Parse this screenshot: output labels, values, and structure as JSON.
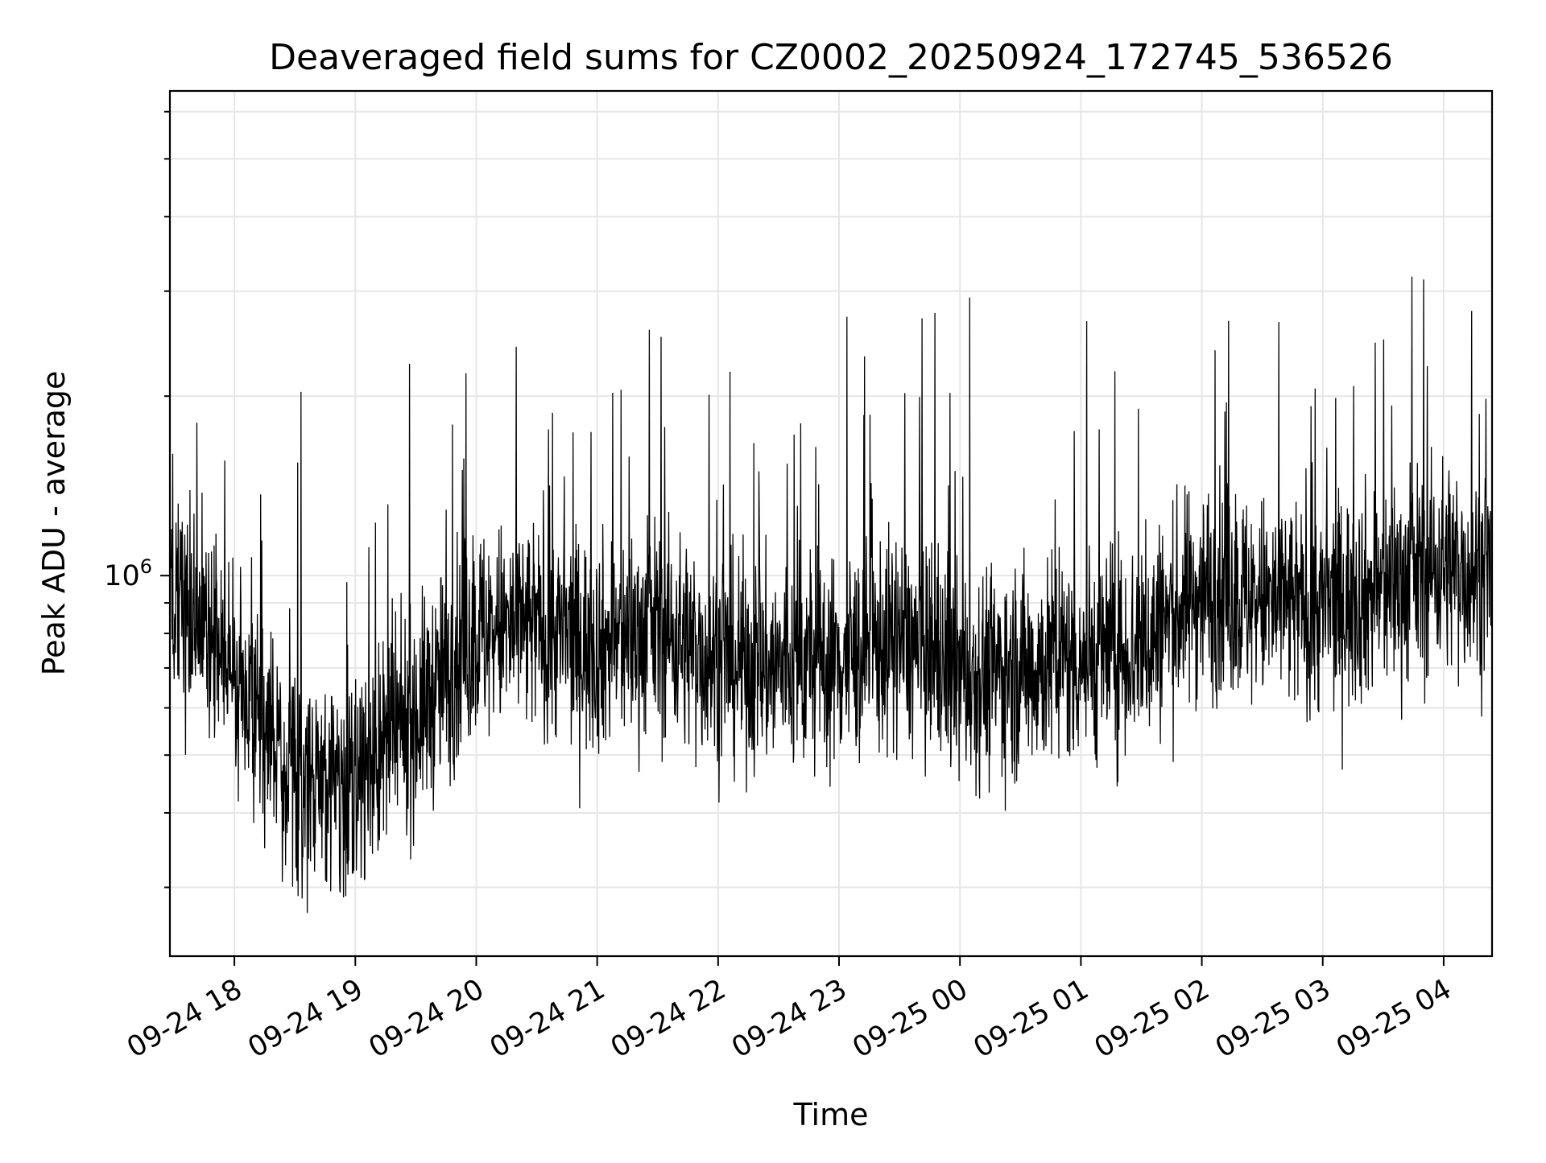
{
  "chart_data": {
    "type": "line",
    "title": "Deaveraged field sums for CZ0002_20250924_172745_536526",
    "xlabel": "Time",
    "ylabel": "Peak ADU - average",
    "x_range": [
      "2025-09-24 17:28",
      "2025-09-25 04:24"
    ],
    "y_scale": "log",
    "ylim": [
      230000,
      6500000
    ],
    "x_tick_labels": [
      "09-24 18",
      "09-24 19",
      "09-24 20",
      "09-24 21",
      "09-24 22",
      "09-24 23",
      "09-25 00",
      "09-25 01",
      "09-25 02",
      "09-25 03",
      "09-25 04"
    ],
    "x_ticks": [
      "2025-09-24 18:00",
      "2025-09-24 19:00",
      "2025-09-24 20:00",
      "2025-09-24 21:00",
      "2025-09-24 22:00",
      "2025-09-24 23:00",
      "2025-09-25 00:00",
      "2025-09-25 01:00",
      "2025-09-25 02:00",
      "2025-09-25 03:00",
      "2025-09-25 04:00"
    ],
    "y_tick_labels": [
      {
        "base": "10",
        "exp": "6",
        "value": 1000000
      }
    ],
    "y_minor_ticks": [
      300000,
      400000,
      500000,
      600000,
      700000,
      800000,
      900000,
      2000000,
      3000000,
      4000000,
      5000000,
      6000000
    ],
    "grid": true,
    "line_color": "#000000",
    "series": [
      {
        "x": [
          "2025-09-24 17:30",
          "2025-09-24 18:00",
          "2025-09-24 18:30",
          "2025-09-24 19:00",
          "2025-09-24 19:30",
          "2025-09-24 20:00",
          "2025-09-24 20:30",
          "2025-09-24 21:00",
          "2025-09-24 21:30",
          "2025-09-24 22:00",
          "2025-09-24 22:30",
          "2025-09-24 23:00",
          "2025-09-24 23:30",
          "2025-09-25 00:00",
          "2025-09-25 00:30",
          "2025-09-25 01:00",
          "2025-09-25 01:30",
          "2025-09-25 02:00",
          "2025-09-25 02:30",
          "2025-09-25 03:00",
          "2025-09-25 03:30",
          "2025-09-25 04:00",
          "2025-09-25 04:20"
        ],
        "values": [
          900000,
          700000,
          460000,
          450000,
          580000,
          800000,
          820000,
          760000,
          820000,
          720000,
          700000,
          720000,
          780000,
          680000,
          700000,
          730000,
          760000,
          950000,
          900000,
          880000,
          950000,
          1050000,
          1000000
        ]
      }
    ]
  }
}
